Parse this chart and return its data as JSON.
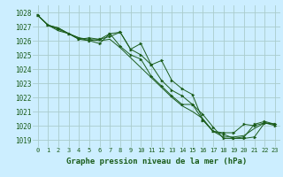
{
  "title": "Graphe pression niveau de la mer (hPa)",
  "bg_color": "#cceeff",
  "grid_color": "#aacccc",
  "line_color": "#1a5c1a",
  "marker_color": "#1a5c1a",
  "xlim": [
    -0.5,
    23.5
  ],
  "ylim": [
    1018.5,
    1028.5
  ],
  "yticks": [
    1019,
    1020,
    1021,
    1022,
    1023,
    1024,
    1025,
    1026,
    1027,
    1028
  ],
  "xticks": [
    0,
    1,
    2,
    3,
    4,
    5,
    6,
    7,
    8,
    9,
    10,
    11,
    12,
    13,
    14,
    15,
    16,
    17,
    18,
    19,
    20,
    21,
    22,
    23
  ],
  "series": [
    {
      "x": [
        0,
        1,
        2,
        3,
        4,
        5,
        6,
        7,
        8,
        9,
        10,
        11,
        12,
        13,
        14,
        15,
        16,
        17,
        18,
        19,
        20,
        21,
        22,
        23
      ],
      "y": [
        1027.8,
        1027.1,
        1026.9,
        1026.5,
        1026.1,
        1026.2,
        1026.1,
        1026.3,
        1026.6,
        1025.4,
        1025.0,
        1024.3,
        1023.2,
        1022.5,
        1022.1,
        1021.5,
        1020.4,
        1019.6,
        1019.5,
        1019.5,
        1020.1,
        1020.0,
        1020.2,
        1020.1
      ],
      "marker": true
    },
    {
      "x": [
        0,
        1,
        2,
        3,
        4,
        5,
        6,
        7,
        8,
        9,
        10,
        11,
        12,
        13,
        14,
        15,
        16,
        17,
        18,
        19,
        20,
        21,
        22,
        23
      ],
      "y": [
        1027.8,
        1027.1,
        1026.8,
        1026.5,
        1026.1,
        1026.0,
        1026.1,
        1026.5,
        1025.6,
        1025.0,
        1024.7,
        1023.5,
        1022.8,
        1022.1,
        1021.5,
        1021.5,
        1020.8,
        1019.9,
        1019.1,
        1019.1,
        1019.2,
        1020.1,
        1020.3,
        1020.1
      ],
      "marker": true
    },
    {
      "x": [
        0,
        1,
        2,
        3,
        4,
        5,
        6,
        7,
        8,
        9,
        10,
        11,
        12,
        13,
        14,
        15,
        16,
        17,
        18,
        19,
        20,
        21,
        22,
        23
      ],
      "y": [
        1027.8,
        1027.1,
        1026.7,
        1026.5,
        1026.2,
        1026.1,
        1026.0,
        1026.1,
        1025.5,
        1024.8,
        1024.1,
        1023.4,
        1022.7,
        1022.0,
        1021.4,
        1021.0,
        1020.5,
        1019.6,
        1019.2,
        1019.2,
        1019.3,
        1019.8,
        1020.2,
        1020.1
      ],
      "marker": false
    },
    {
      "x": [
        0,
        1,
        2,
        3,
        4,
        5,
        6,
        7,
        8,
        9,
        10,
        11,
        12,
        13,
        14,
        15,
        16,
        17,
        18,
        19,
        20,
        21,
        22,
        23
      ],
      "y": [
        1027.8,
        1027.1,
        1026.9,
        1026.5,
        1026.2,
        1026.0,
        1025.8,
        1026.5,
        1026.6,
        1025.4,
        1025.8,
        1024.3,
        1024.6,
        1023.2,
        1022.6,
        1022.2,
        1020.4,
        1019.6,
        1019.4,
        1019.1,
        1019.1,
        1019.2,
        1020.2,
        1020.0
      ],
      "marker": true
    }
  ]
}
